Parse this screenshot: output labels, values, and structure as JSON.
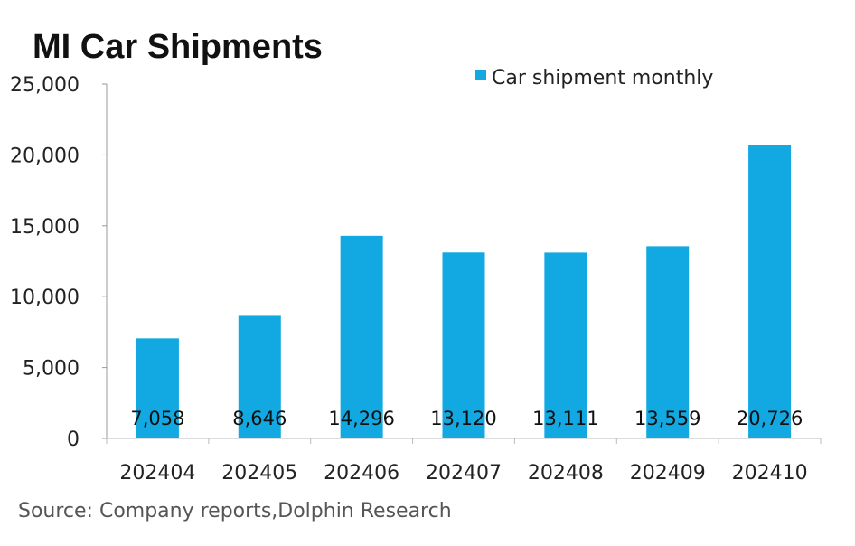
{
  "chart_data": {
    "type": "bar",
    "title": "MI Car Shipments",
    "categories": [
      "202404",
      "202405",
      "202406",
      "202407",
      "202408",
      "202409",
      "202410"
    ],
    "series": [
      {
        "name": "Car shipment monthly",
        "values": [
          7058,
          8646,
          14296,
          13120,
          13111,
          13559,
          20726
        ]
      }
    ],
    "data_labels": [
      "7,058",
      "8,646",
      "14,296",
      "13,120",
      "13,111",
      "13,559",
      "20,726"
    ],
    "yticks": [
      "0",
      "5,000",
      "10,000",
      "15,000",
      "20,000",
      "25,000"
    ],
    "ylim": [
      0,
      25000
    ],
    "xlabel": "",
    "ylabel": "",
    "legend_position": "top-right",
    "grid": false,
    "source": "Source: Company reports,Dolphin Research",
    "bar_color": "#12a9e2"
  }
}
